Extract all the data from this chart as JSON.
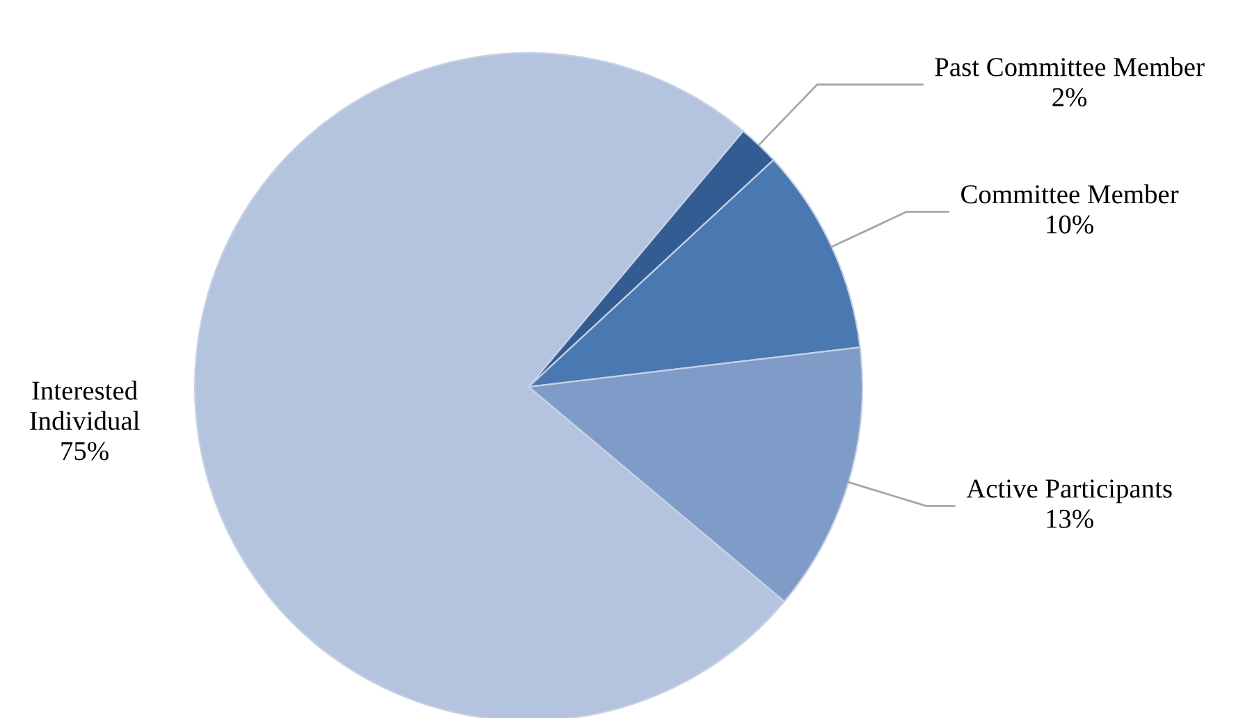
{
  "chart_data": {
    "type": "pie",
    "categories": [
      "Past Committee Member",
      "Committee Member",
      "Active Participants",
      "Interested Individual"
    ],
    "values": [
      2,
      10,
      13,
      75
    ],
    "colors": [
      "#335d92",
      "#4a78b0",
      "#7f9cc8",
      "#b5c4de"
    ],
    "value_labels": [
      "2%",
      "10%",
      "13%",
      "75%"
    ]
  }
}
